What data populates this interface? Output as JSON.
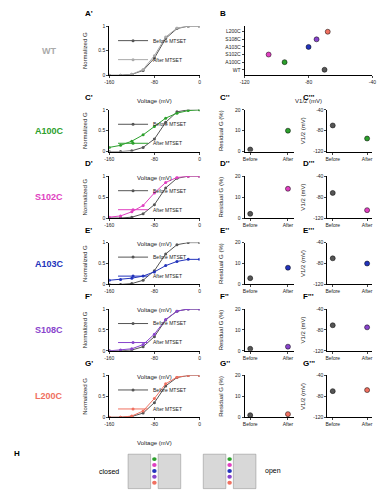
{
  "chart_data": [
    {
      "type": "line",
      "panel": "A'",
      "title": "WT",
      "xlabel": "Voltage (mV)",
      "ylabel": "Normalized G",
      "x": [
        -160,
        -140,
        -120,
        -100,
        -80,
        -60,
        -40,
        -20,
        0
      ],
      "series": [
        {
          "name": "Before MTSET",
          "color": "#555555",
          "values": [
            0,
            0,
            0.02,
            0.1,
            0.35,
            0.75,
            0.95,
            1,
            1
          ]
        },
        {
          "name": "After MTSET",
          "color": "#aaaaaa",
          "values": [
            0,
            0,
            0.02,
            0.12,
            0.4,
            0.78,
            0.96,
            1,
            1
          ]
        }
      ],
      "xlim": [
        -160,
        0
      ],
      "xticks": [
        -160,
        -80,
        0
      ],
      "ylim": [
        0,
        1
      ],
      "yticks": [
        0,
        0.5,
        1
      ],
      "legend": "upper left"
    },
    {
      "type": "scatter",
      "panel": "B",
      "orientation": "horizontal",
      "xlabel": "V1/2 (mV)",
      "categories": [
        "WT",
        "A100C",
        "S102C",
        "A103C",
        "S108C",
        "L200C"
      ],
      "values": [
        -70,
        -95,
        -105,
        -80,
        -75,
        -68
      ],
      "colors": [
        "#555555",
        "#2ca02c",
        "#e040c0",
        "#2233bb",
        "#8844cc",
        "#f07060"
      ],
      "xlim": [
        -120,
        -40
      ],
      "xticks": [
        -120,
        -80,
        -40
      ]
    },
    {
      "type": "line",
      "panel": "C'",
      "title": "A100C",
      "xlabel": "Voltage (mV)",
      "ylabel": "Normalized G",
      "x": [
        -160,
        -140,
        -120,
        -100,
        -80,
        -60,
        -40,
        -20,
        0
      ],
      "series": [
        {
          "name": "Before MTSET",
          "color": "#555555",
          "values": [
            0,
            0,
            0.02,
            0.1,
            0.3,
            0.7,
            0.95,
            1,
            1
          ]
        },
        {
          "name": "After MTSET",
          "color": "#2ca02c",
          "values": [
            0.1,
            0.15,
            0.25,
            0.4,
            0.6,
            0.8,
            0.92,
            0.98,
            1
          ]
        }
      ],
      "xlim": [
        -160,
        0
      ],
      "xticks": [
        -160,
        -80,
        0
      ],
      "ylim": [
        0,
        1
      ],
      "yticks": [
        0,
        0.5,
        1
      ],
      "legend": "upper left"
    },
    {
      "type": "scatter",
      "panel": "C''",
      "ylabel": "Residual G (%)",
      "categories": [
        "Before",
        "After"
      ],
      "values": [
        1,
        10
      ],
      "colors": [
        "#555555",
        "#2ca02c"
      ],
      "ylim": [
        0,
        20
      ],
      "yticks": [
        0,
        10,
        20
      ]
    },
    {
      "type": "scatter",
      "panel": "C'''",
      "ylabel": "V1/2 (mV)",
      "categories": [
        "Before",
        "After"
      ],
      "values": [
        -70,
        -95
      ],
      "colors": [
        "#555555",
        "#2ca02c"
      ],
      "ylim": [
        -120,
        -40
      ],
      "yticks": [
        -120,
        -80,
        -40
      ]
    },
    {
      "type": "line",
      "panel": "D'",
      "title": "S102C",
      "xlabel": "Voltage (mV)",
      "ylabel": "Normalized G",
      "x": [
        -160,
        -140,
        -120,
        -100,
        -80,
        -60,
        -40,
        -20,
        0
      ],
      "series": [
        {
          "name": "Before MTSET",
          "color": "#555555",
          "values": [
            0,
            0,
            0.02,
            0.1,
            0.32,
            0.72,
            0.95,
            1,
            1
          ]
        },
        {
          "name": "After MTSET",
          "color": "#e040c0",
          "values": [
            0.02,
            0.05,
            0.15,
            0.3,
            0.6,
            0.85,
            0.97,
            1,
            1
          ]
        }
      ],
      "xlim": [
        -160,
        0
      ],
      "xticks": [
        -160,
        -80,
        0
      ],
      "ylim": [
        0,
        1
      ],
      "yticks": [
        0,
        0.5,
        1
      ],
      "legend": "upper left"
    },
    {
      "type": "scatter",
      "panel": "D''",
      "ylabel": "Residual G (%)",
      "categories": [
        "Before",
        "After"
      ],
      "values": [
        2,
        14
      ],
      "colors": [
        "#555555",
        "#e040c0"
      ],
      "ylim": [
        0,
        20
      ],
      "yticks": [
        0,
        10,
        20
      ]
    },
    {
      "type": "scatter",
      "panel": "D'''",
      "ylabel": "V1/2 (mV)",
      "categories": [
        "Before",
        "After"
      ],
      "values": [
        -72,
        -105
      ],
      "colors": [
        "#555555",
        "#e040c0"
      ],
      "ylim": [
        -120,
        -40
      ],
      "yticks": [
        -120,
        -80,
        -40
      ]
    },
    {
      "type": "line",
      "panel": "E'",
      "title": "A103C",
      "xlabel": "Voltage (mV)",
      "ylabel": "Normalized G",
      "x": [
        -160,
        -140,
        -120,
        -100,
        -80,
        -60,
        -40,
        -20,
        0
      ],
      "series": [
        {
          "name": "Before MTSET",
          "color": "#555555",
          "values": [
            0,
            0,
            0.02,
            0.1,
            0.33,
            0.73,
            0.95,
            1,
            1
          ]
        },
        {
          "name": "After MTSET",
          "color": "#2233bb",
          "values": [
            0.1,
            0.12,
            0.15,
            0.2,
            0.3,
            0.45,
            0.55,
            0.6,
            0.6
          ]
        }
      ],
      "xlim": [
        -160,
        0
      ],
      "xticks": [
        -160,
        -80,
        0
      ],
      "ylim": [
        0,
        1
      ],
      "yticks": [
        0,
        0.5,
        1
      ],
      "legend": "upper left"
    },
    {
      "type": "scatter",
      "panel": "E''",
      "ylabel": "Residual G (%)",
      "categories": [
        "Before",
        "After"
      ],
      "values": [
        3,
        8
      ],
      "colors": [
        "#555555",
        "#2233bb"
      ],
      "ylim": [
        0,
        20
      ],
      "yticks": [
        0,
        10,
        20
      ]
    },
    {
      "type": "scatter",
      "panel": "E'''",
      "ylabel": "V1/2 (mV)",
      "categories": [
        "Before",
        "After"
      ],
      "values": [
        -70,
        -80
      ],
      "colors": [
        "#555555",
        "#2233bb"
      ],
      "ylim": [
        -120,
        -40
      ],
      "yticks": [
        -120,
        -80,
        -40
      ]
    },
    {
      "type": "line",
      "panel": "F'",
      "title": "S108C",
      "xlabel": "Voltage (mV)",
      "ylabel": "Normalized G",
      "x": [
        -160,
        -140,
        -120,
        -100,
        -80,
        -60,
        -40,
        -20,
        0
      ],
      "series": [
        {
          "name": "Before MTSET",
          "color": "#555555",
          "values": [
            0,
            0,
            0.02,
            0.1,
            0.34,
            0.74,
            0.95,
            1,
            1
          ]
        },
        {
          "name": "After MTSET",
          "color": "#8844cc",
          "values": [
            0,
            0.02,
            0.05,
            0.15,
            0.4,
            0.75,
            0.95,
            1,
            1
          ]
        }
      ],
      "xlim": [
        -160,
        0
      ],
      "xticks": [
        -160,
        -80,
        0
      ],
      "ylim": [
        0,
        1
      ],
      "yticks": [
        0,
        0.5,
        1
      ],
      "legend": "upper left"
    },
    {
      "type": "scatter",
      "panel": "F''",
      "ylabel": "Residual G (%)",
      "categories": [
        "Before",
        "After"
      ],
      "values": [
        1,
        2
      ],
      "colors": [
        "#555555",
        "#8844cc"
      ],
      "ylim": [
        0,
        20
      ],
      "yticks": [
        0,
        10,
        20
      ]
    },
    {
      "type": "scatter",
      "panel": "F'''",
      "ylabel": "V1/2 (mV)",
      "categories": [
        "Before",
        "After"
      ],
      "values": [
        -71,
        -75
      ],
      "colors": [
        "#555555",
        "#8844cc"
      ],
      "ylim": [
        -120,
        -40
      ],
      "yticks": [
        -120,
        -80,
        -40
      ]
    },
    {
      "type": "line",
      "panel": "G'",
      "title": "L200C",
      "xlabel": "Voltage (mV)",
      "ylabel": "Normalized G",
      "x": [
        -160,
        -140,
        -120,
        -100,
        -80,
        -60,
        -40,
        -20,
        0
      ],
      "series": [
        {
          "name": "Before MTSET",
          "color": "#555555",
          "values": [
            0,
            0,
            0.02,
            0.1,
            0.35,
            0.75,
            0.95,
            1,
            1
          ]
        },
        {
          "name": "After MTSET",
          "color": "#f07060",
          "values": [
            0,
            0,
            0.03,
            0.15,
            0.45,
            0.8,
            0.96,
            1,
            1
          ]
        }
      ],
      "xlim": [
        -160,
        0
      ],
      "xticks": [
        -160,
        -80,
        0
      ],
      "ylim": [
        0,
        1
      ],
      "yticks": [
        0,
        0.5,
        1
      ],
      "legend": "upper left"
    },
    {
      "type": "scatter",
      "panel": "G''",
      "ylabel": "Residual G (%)",
      "categories": [
        "Before",
        "After"
      ],
      "values": [
        1,
        1.5
      ],
      "colors": [
        "#555555",
        "#f07060"
      ],
      "ylim": [
        0,
        20
      ],
      "yticks": [
        0,
        10,
        20
      ]
    },
    {
      "type": "scatter",
      "panel": "G'''",
      "ylabel": "V1/2 (mV)",
      "categories": [
        "Before",
        "After"
      ],
      "values": [
        -70,
        -68
      ],
      "colors": [
        "#555555",
        "#f07060"
      ],
      "ylim": [
        -120,
        -40
      ],
      "yticks": [
        -120,
        -80,
        -40
      ]
    }
  ],
  "diagram": {
    "panel": "H",
    "labels": [
      "closed",
      "open"
    ]
  }
}
